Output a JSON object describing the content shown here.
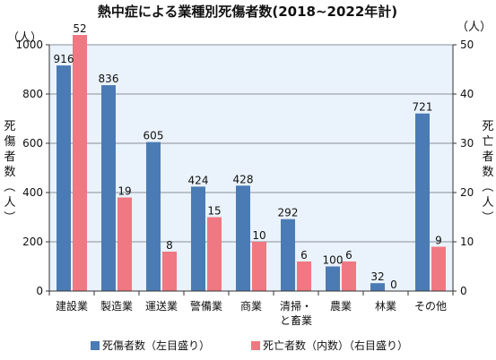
{
  "chart_data": {
    "type": "bar",
    "title": "熱中症による業種別死傷者数(2018~2022年計)",
    "unit_left": "（人）",
    "unit_right": "（人）",
    "ylabel_left": "死傷者数（人）",
    "ylabel_right": "死亡者数（人）",
    "categories": [
      "建設業",
      "製造業",
      "運送業",
      "警備業",
      "商業",
      "清掃・と畜業",
      "農業",
      "林業",
      "その他"
    ],
    "category_lines": [
      [
        "建設業"
      ],
      [
        "製造業"
      ],
      [
        "運送業"
      ],
      [
        "警備業"
      ],
      [
        "商業"
      ],
      [
        "清掃・",
        "と畜業"
      ],
      [
        "農業"
      ],
      [
        "林業"
      ],
      [
        "その他"
      ]
    ],
    "series": [
      {
        "name": "死傷者数（左目盛り）",
        "axis": "left",
        "color": "#4b7bb4",
        "values": [
          916,
          836,
          605,
          424,
          428,
          292,
          100,
          32,
          721
        ]
      },
      {
        "name": "死亡者数（内数）（右目盛り）",
        "axis": "right",
        "color": "#f07882",
        "values": [
          52,
          19,
          8,
          15,
          10,
          6,
          6,
          0,
          9
        ]
      }
    ],
    "ylim_left": [
      0,
      1000
    ],
    "yticks_left": [
      0,
      200,
      400,
      600,
      800,
      1000
    ],
    "ylim_right": [
      0,
      50
    ],
    "yticks_right": [
      0,
      10,
      20,
      30,
      40,
      50
    ],
    "grid": true,
    "legend": "bottom"
  }
}
